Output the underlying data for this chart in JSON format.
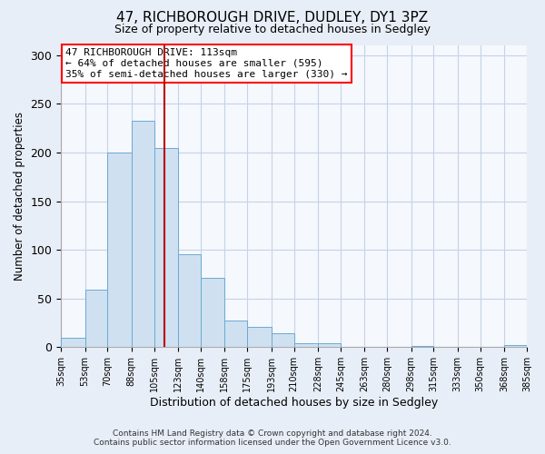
{
  "title": "47, RICHBOROUGH DRIVE, DUDLEY, DY1 3PZ",
  "subtitle": "Size of property relative to detached houses in Sedgley",
  "xlabel": "Distribution of detached houses by size in Sedgley",
  "ylabel": "Number of detached properties",
  "bar_color": "#cfe0f0",
  "bar_edge_color": "#6aaad4",
  "bins": [
    35,
    53,
    70,
    88,
    105,
    123,
    140,
    158,
    175,
    193,
    210,
    228,
    245,
    263,
    280,
    298,
    315,
    333,
    350,
    368,
    385
  ],
  "bin_labels": [
    "35sqm",
    "53sqm",
    "70sqm",
    "88sqm",
    "105sqm",
    "123sqm",
    "140sqm",
    "158sqm",
    "175sqm",
    "193sqm",
    "210sqm",
    "228sqm",
    "245sqm",
    "263sqm",
    "280sqm",
    "298sqm",
    "315sqm",
    "333sqm",
    "350sqm",
    "368sqm",
    "385sqm"
  ],
  "counts": [
    10,
    59,
    200,
    233,
    205,
    95,
    71,
    27,
    21,
    14,
    4,
    4,
    0,
    0,
    0,
    1,
    0,
    0,
    0,
    2
  ],
  "vline_x": 113,
  "vline_color": "#bb0000",
  "annotation_box_text": "47 RICHBOROUGH DRIVE: 113sqm\n← 64% of detached houses are smaller (595)\n35% of semi-detached houses are larger (330) →",
  "ylim": [
    0,
    310
  ],
  "yticks": [
    0,
    50,
    100,
    150,
    200,
    250,
    300
  ],
  "footer_line1": "Contains HM Land Registry data © Crown copyright and database right 2024.",
  "footer_line2": "Contains public sector information licensed under the Open Government Licence v3.0.",
  "background_color": "#e8eef7",
  "plot_background": "#f5f8fd",
  "grid_color": "#c5d3e8"
}
